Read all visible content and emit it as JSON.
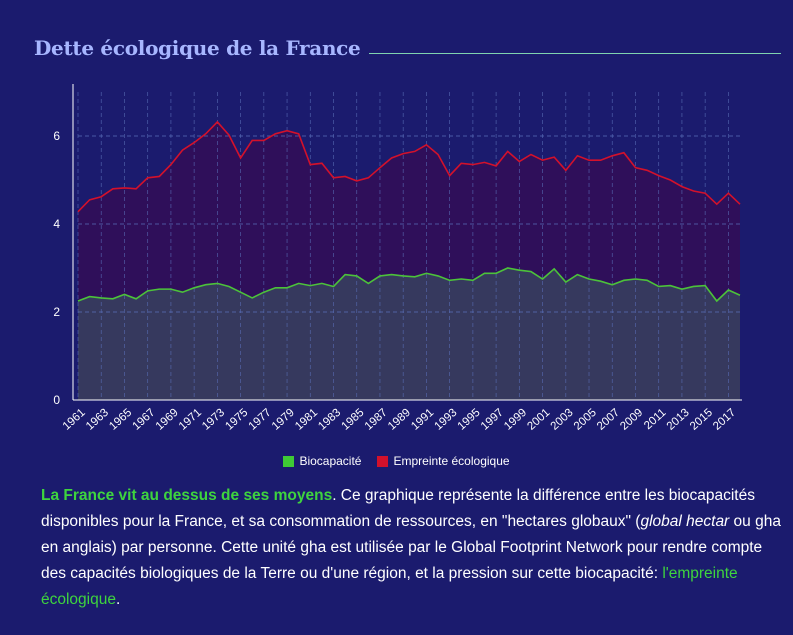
{
  "header": {
    "title": "Dette écologique de la France"
  },
  "chart_data": {
    "type": "area",
    "title": "",
    "xlabel": "",
    "ylabel": "",
    "ylim": [
      0,
      7
    ],
    "yticks": [
      0,
      2,
      4,
      6
    ],
    "grid": true,
    "legend_position": "bottom",
    "x": [
      1961,
      1962,
      1963,
      1964,
      1965,
      1966,
      1967,
      1968,
      1969,
      1970,
      1971,
      1972,
      1973,
      1974,
      1975,
      1976,
      1977,
      1978,
      1979,
      1980,
      1981,
      1982,
      1983,
      1984,
      1985,
      1986,
      1987,
      1988,
      1989,
      1990,
      1991,
      1992,
      1993,
      1994,
      1995,
      1996,
      1997,
      1998,
      1999,
      2000,
      2001,
      2002,
      2003,
      2004,
      2005,
      2006,
      2007,
      2008,
      2009,
      2010,
      2011,
      2012,
      2013,
      2014,
      2015,
      2016,
      2017,
      2018
    ],
    "xtick_labels": [
      "1961",
      "1963",
      "1965",
      "1967",
      "1969",
      "1971",
      "1973",
      "1975",
      "1977",
      "1979",
      "1981",
      "1983",
      "1985",
      "1987",
      "1989",
      "1991",
      "1993",
      "1995",
      "1997",
      "1999",
      "2001",
      "2003",
      "2005",
      "2007",
      "2009",
      "2011",
      "2013",
      "2015",
      "2017"
    ],
    "series": [
      {
        "name": "Biocapacité",
        "color": "#4cc23a",
        "values": [
          2.25,
          2.35,
          2.32,
          2.3,
          2.4,
          2.3,
          2.48,
          2.52,
          2.52,
          2.45,
          2.55,
          2.62,
          2.65,
          2.58,
          2.45,
          2.32,
          2.45,
          2.55,
          2.55,
          2.65,
          2.6,
          2.65,
          2.58,
          2.85,
          2.82,
          2.65,
          2.82,
          2.85,
          2.82,
          2.8,
          2.88,
          2.82,
          2.72,
          2.75,
          2.72,
          2.88,
          2.88,
          3.0,
          2.95,
          2.92,
          2.75,
          2.98,
          2.68,
          2.85,
          2.75,
          2.7,
          2.62,
          2.72,
          2.75,
          2.72,
          2.58,
          2.6,
          2.52,
          2.58,
          2.6,
          2.25,
          2.5,
          2.38
        ]
      },
      {
        "name": "Empreinte écologique",
        "color": "#d3112b",
        "values": [
          4.28,
          4.55,
          4.62,
          4.8,
          4.82,
          4.8,
          5.05,
          5.08,
          5.35,
          5.68,
          5.85,
          6.05,
          6.32,
          6.02,
          5.5,
          5.9,
          5.9,
          6.05,
          6.12,
          6.05,
          5.35,
          5.38,
          5.05,
          5.08,
          4.98,
          5.05,
          5.28,
          5.5,
          5.6,
          5.65,
          5.8,
          5.58,
          5.1,
          5.38,
          5.35,
          5.4,
          5.32,
          5.65,
          5.42,
          5.58,
          5.45,
          5.52,
          5.22,
          5.55,
          5.45,
          5.45,
          5.55,
          5.62,
          5.28,
          5.22,
          5.1,
          5.0,
          4.85,
          4.75,
          4.7,
          4.45,
          4.7,
          4.45
        ]
      }
    ]
  },
  "description": {
    "highlight": "La France vit au dessus de ses moyens",
    "part1": ". Ce graphique représente la différence entre les biocapacités disponibles pour la France, et sa consommation de ressources, en \"hectares globaux\" (",
    "italic": "global hectar",
    "part2": " ou gha en anglais) par personne. Cette unité gha est utilisée par le Global Footprint Network pour rendre compte des capacités biologiques de la Terre ou d'une région, et la pression sur cette biocapacité: ",
    "link": "l'empreinte écologique",
    "end": "."
  }
}
